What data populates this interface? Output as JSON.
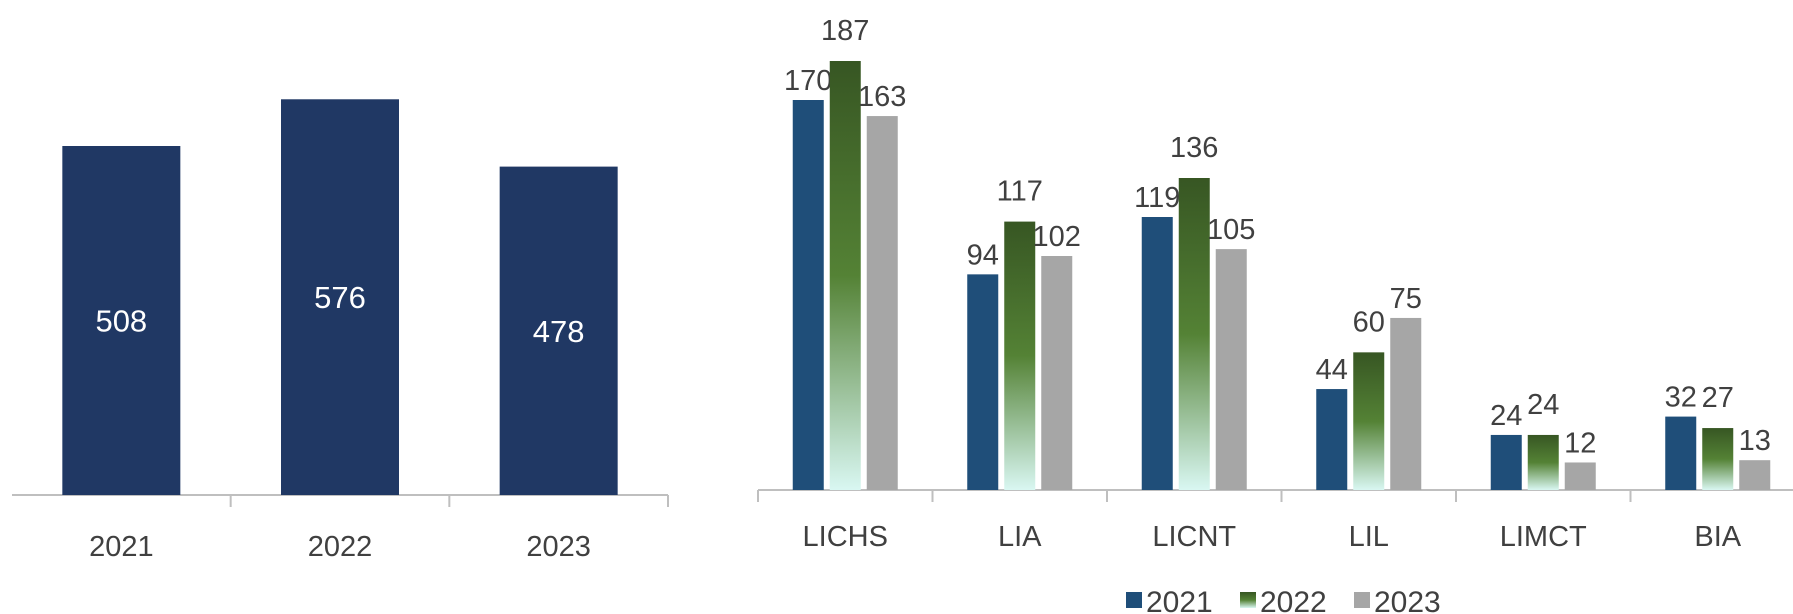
{
  "colors": {
    "left_bar": "#203864",
    "series_2021": "#1F4E79",
    "series_2022_top": "#375623",
    "series_2022_mid": "#548235",
    "series_2022_bottom": "#D9F7F2",
    "series_2023": "#A6A6A6",
    "axis": "#BFBFBF",
    "text": "#404040"
  },
  "chart_data": [
    {
      "type": "bar",
      "categories": [
        "2021",
        "2022",
        "2023"
      ],
      "values": [
        508,
        576,
        478
      ],
      "title": "",
      "xlabel": "",
      "ylabel": "",
      "ylim": [
        0,
        740
      ],
      "grid": false,
      "data_labels": "inside"
    },
    {
      "type": "bar",
      "categories": [
        "LICHS",
        "LIA",
        "LICNT",
        "LIL",
        "LIMCT",
        "BIA"
      ],
      "series": [
        {
          "name": "2021",
          "values": [
            170,
            94,
            119,
            44,
            24,
            32
          ]
        },
        {
          "name": "2022",
          "values": [
            187,
            117,
            136,
            60,
            24,
            27
          ]
        },
        {
          "name": "2023",
          "values": [
            163,
            102,
            105,
            75,
            12,
            13
          ]
        }
      ],
      "title": "",
      "xlabel": "",
      "ylabel": "",
      "ylim": [
        0,
        212
      ],
      "grid": false,
      "legend": "bottom"
    }
  ]
}
